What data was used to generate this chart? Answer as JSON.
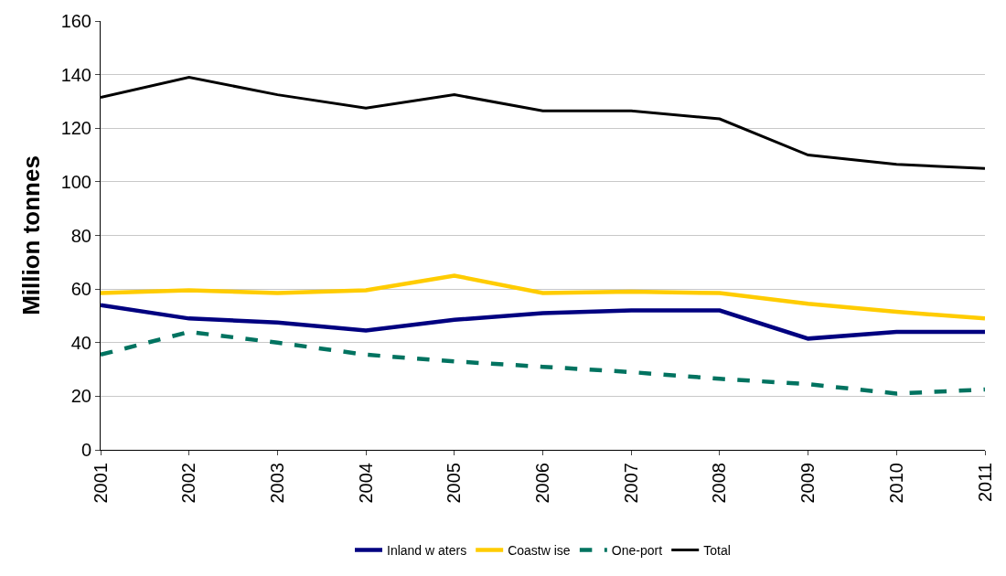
{
  "chart_data": {
    "type": "line",
    "ylabel": "Million tonnes",
    "categories": [
      "2001",
      "2002",
      "2003",
      "2004",
      "2005",
      "2006",
      "2007",
      "2008",
      "2009",
      "2010",
      "2011"
    ],
    "series": [
      {
        "name": "Inland w aters",
        "color": "#000080",
        "line_style": "solid",
        "values": [
          54,
          49,
          47.5,
          44.5,
          48.5,
          51,
          52,
          52,
          41.5,
          44,
          44
        ]
      },
      {
        "name": "Coastw ise",
        "color": "#ffcc00",
        "line_style": "solid",
        "values": [
          58.5,
          59.5,
          58.5,
          59.5,
          65,
          58.5,
          59,
          58.5,
          54.5,
          51.5,
          49
        ]
      },
      {
        "name": "One-port",
        "color": "#007360",
        "line_style": "dashed",
        "values": [
          35.5,
          44,
          40,
          35.5,
          33,
          31,
          29,
          26.5,
          24.5,
          21,
          22.5
        ]
      },
      {
        "name": "Total",
        "color": "#000000",
        "line_style": "solid",
        "values": [
          131.5,
          139,
          132.5,
          127.5,
          132.5,
          126.5,
          126.5,
          123.5,
          110,
          106.5,
          105
        ]
      }
    ],
    "ylim": [
      0,
      160
    ],
    "yticks": [
      0,
      20,
      40,
      60,
      80,
      100,
      120,
      140,
      160
    ],
    "grid": "y",
    "legend": "bottom",
    "marker": "none"
  }
}
